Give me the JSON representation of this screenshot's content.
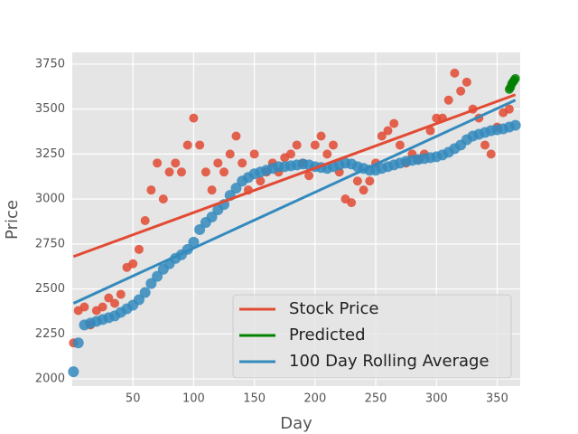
{
  "chart_data": {
    "type": "scatter",
    "xlabel": "Day",
    "ylabel": "Price",
    "xlim": [
      0,
      369
    ],
    "ylim": [
      1960,
      3815
    ],
    "xticks": [
      50,
      100,
      150,
      200,
      250,
      300,
      350
    ],
    "yticks": [
      2000,
      2250,
      2500,
      2750,
      3000,
      3250,
      3500,
      3750
    ],
    "grid": true,
    "legend": "lower right",
    "series": [
      {
        "name": "Stock Price",
        "color": "#e24a33",
        "x": [
          1,
          5,
          10,
          15,
          20,
          25,
          30,
          35,
          40,
          45,
          50,
          55,
          60,
          65,
          70,
          75,
          80,
          85,
          90,
          95,
          100,
          105,
          110,
          115,
          120,
          125,
          130,
          135,
          140,
          145,
          150,
          155,
          160,
          165,
          170,
          175,
          180,
          185,
          190,
          195,
          200,
          205,
          210,
          215,
          220,
          225,
          230,
          235,
          240,
          245,
          250,
          255,
          260,
          265,
          270,
          275,
          280,
          285,
          290,
          295,
          300,
          305,
          310,
          315,
          320,
          325,
          330,
          335,
          340,
          345,
          350,
          355,
          360
        ],
        "values": [
          2200,
          2380,
          2400,
          2300,
          2380,
          2400,
          2450,
          2420,
          2470,
          2620,
          2640,
          2720,
          2880,
          3050,
          3200,
          3000,
          3150,
          3200,
          3150,
          3300,
          3450,
          3300,
          3150,
          3050,
          3200,
          3150,
          3250,
          3350,
          3200,
          3050,
          3250,
          3100,
          3150,
          3200,
          3150,
          3230,
          3250,
          3300,
          3200,
          3130,
          3300,
          3350,
          3250,
          3300,
          3150,
          3000,
          2980,
          3100,
          3050,
          3100,
          3200,
          3350,
          3380,
          3420,
          3300,
          3200,
          3250,
          3220,
          3250,
          3380,
          3450,
          3450,
          3550,
          3700,
          3600,
          3650,
          3500,
          3450,
          3300,
          3250,
          3400,
          3480,
          3500
        ],
        "fit": {
          "x": [
            1,
            365
          ],
          "values": [
            2680,
            3580
          ]
        }
      },
      {
        "name": "Predicted",
        "color": "#008000",
        "x": [
          360,
          361,
          362,
          363,
          364,
          365
        ],
        "values": [
          3610,
          3620,
          3640,
          3650,
          3660,
          3670
        ]
      },
      {
        "name": "100 Day Rolling Average",
        "color": "#348abd",
        "x": [
          1,
          5,
          10,
          15,
          20,
          25,
          30,
          35,
          40,
          45,
          50,
          55,
          60,
          65,
          70,
          75,
          80,
          85,
          90,
          95,
          100,
          105,
          110,
          115,
          120,
          125,
          130,
          135,
          140,
          145,
          150,
          155,
          160,
          165,
          170,
          175,
          180,
          185,
          190,
          195,
          200,
          205,
          210,
          215,
          220,
          225,
          230,
          235,
          240,
          245,
          250,
          255,
          260,
          265,
          270,
          275,
          280,
          285,
          290,
          295,
          300,
          305,
          310,
          315,
          320,
          325,
          330,
          335,
          340,
          345,
          350,
          355,
          360,
          365
        ],
        "values": [
          2040,
          2200,
          2300,
          2310,
          2320,
          2330,
          2340,
          2350,
          2370,
          2390,
          2410,
          2440,
          2480,
          2530,
          2570,
          2610,
          2640,
          2670,
          2690,
          2720,
          2760,
          2830,
          2870,
          2900,
          2940,
          2970,
          3020,
          3060,
          3100,
          3120,
          3140,
          3150,
          3160,
          3170,
          3180,
          3180,
          3185,
          3190,
          3195,
          3190,
          3180,
          3175,
          3170,
          3180,
          3190,
          3200,
          3195,
          3180,
          3170,
          3160,
          3160,
          3170,
          3180,
          3190,
          3200,
          3210,
          3215,
          3220,
          3225,
          3230,
          3235,
          3245,
          3260,
          3280,
          3300,
          3330,
          3350,
          3360,
          3370,
          3380,
          3385,
          3390,
          3400,
          3410
        ],
        "fit": {
          "x": [
            1,
            365
          ],
          "values": [
            2420,
            3550
          ]
        }
      }
    ]
  }
}
